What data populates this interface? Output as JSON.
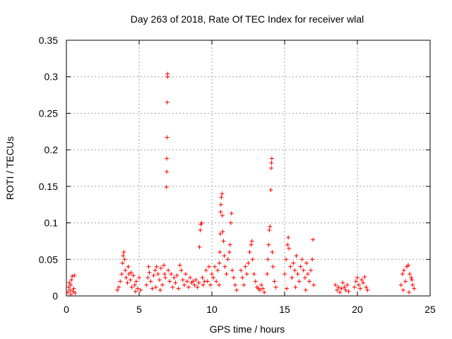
{
  "chart_data": {
    "type": "scatter",
    "title": "Day 263 of 2018, Rate Of TEC Index for receiver wlal",
    "xlabel": "GPS time / hours",
    "ylabel": "ROTI / TECUs",
    "xlim": [
      0,
      25
    ],
    "ylim": [
      0,
      0.35
    ],
    "x_ticks": [
      "0",
      "5",
      "10",
      "15",
      "20",
      "25"
    ],
    "y_ticks": [
      "0",
      "0.05",
      "0.1",
      "0.15",
      "0.2",
      "0.25",
      "0.3",
      "0.35"
    ],
    "grid": true,
    "marker": "+",
    "color": "#ff0000",
    "series": [
      {
        "name": "ROTI",
        "points": [
          [
            0.1,
            0.005
          ],
          [
            0.15,
            0.012
          ],
          [
            0.2,
            0.018
          ],
          [
            0.25,
            0.008
          ],
          [
            0.3,
            0.015
          ],
          [
            0.35,
            0.022
          ],
          [
            0.4,
            0.027
          ],
          [
            0.45,
            0.006
          ],
          [
            0.5,
            0.01
          ],
          [
            0.55,
            0.028
          ],
          [
            0.6,
            0.004
          ],
          [
            0.3,
            0.002
          ],
          [
            3.5,
            0.008
          ],
          [
            3.6,
            0.012
          ],
          [
            3.7,
            0.02
          ],
          [
            3.8,
            0.03
          ],
          [
            3.85,
            0.045
          ],
          [
            3.9,
            0.055
          ],
          [
            3.95,
            0.06
          ],
          [
            4.0,
            0.05
          ],
          [
            4.05,
            0.035
          ],
          [
            4.1,
            0.025
          ],
          [
            4.2,
            0.018
          ],
          [
            4.3,
            0.03
          ],
          [
            4.4,
            0.022
          ],
          [
            4.5,
            0.012
          ],
          [
            4.6,
            0.028
          ],
          [
            4.7,
            0.015
          ],
          [
            4.8,
            0.02
          ],
          [
            4.9,
            0.01
          ],
          [
            5.0,
            0.025
          ],
          [
            5.1,
            0.008
          ],
          [
            4.25,
            0.04
          ],
          [
            4.45,
            0.032
          ],
          [
            4.75,
            0.006
          ],
          [
            5.5,
            0.015
          ],
          [
            5.6,
            0.025
          ],
          [
            5.7,
            0.032
          ],
          [
            5.8,
            0.02
          ],
          [
            5.9,
            0.01
          ],
          [
            6.0,
            0.028
          ],
          [
            6.1,
            0.035
          ],
          [
            6.2,
            0.04
          ],
          [
            6.3,
            0.03
          ],
          [
            6.4,
            0.022
          ],
          [
            6.5,
            0.038
          ],
          [
            6.6,
            0.015
          ],
          [
            6.7,
            0.042
          ],
          [
            6.8,
            0.025
          ],
          [
            5.65,
            0.04
          ],
          [
            6.15,
            0.012
          ],
          [
            6.45,
            0.008
          ],
          [
            6.75,
            0.03
          ],
          [
            6.88,
            0.149
          ],
          [
            6.9,
            0.17
          ],
          [
            6.9,
            0.188
          ],
          [
            6.92,
            0.217
          ],
          [
            6.93,
            0.265
          ],
          [
            6.95,
            0.3
          ],
          [
            6.95,
            0.304
          ],
          [
            7.0,
            0.035
          ],
          [
            7.1,
            0.02
          ],
          [
            7.2,
            0.03
          ],
          [
            7.3,
            0.012
          ],
          [
            7.4,
            0.025
          ],
          [
            7.5,
            0.018
          ],
          [
            7.6,
            0.028
          ],
          [
            7.7,
            0.01
          ],
          [
            7.8,
            0.042
          ],
          [
            7.9,
            0.035
          ],
          [
            8.0,
            0.022
          ],
          [
            8.1,
            0.015
          ],
          [
            8.2,
            0.03
          ],
          [
            8.3,
            0.02
          ],
          [
            8.4,
            0.012
          ],
          [
            8.5,
            0.025
          ],
          [
            8.6,
            0.018
          ],
          [
            8.7,
            0.02
          ],
          [
            8.8,
            0.015
          ],
          [
            8.9,
            0.022
          ],
          [
            9.0,
            0.012
          ],
          [
            9.1,
            0.018
          ],
          [
            9.15,
            0.067
          ],
          [
            9.2,
            0.09
          ],
          [
            9.25,
            0.098
          ],
          [
            9.3,
            0.1
          ],
          [
            9.35,
            0.025
          ],
          [
            9.4,
            0.015
          ],
          [
            9.5,
            0.02
          ],
          [
            9.6,
            0.035
          ],
          [
            9.7,
            0.02
          ],
          [
            9.8,
            0.04
          ],
          [
            9.9,
            0.015
          ],
          [
            10.0,
            0.03
          ],
          [
            10.1,
            0.025
          ],
          [
            10.2,
            0.04
          ],
          [
            10.3,
            0.02
          ],
          [
            10.4,
            0.035
          ],
          [
            10.5,
            0.015
          ],
          [
            10.52,
            0.045
          ],
          [
            10.55,
            0.06
          ],
          [
            10.58,
            0.085
          ],
          [
            10.6,
            0.115
          ],
          [
            10.62,
            0.125
          ],
          [
            10.65,
            0.135
          ],
          [
            10.7,
            0.14
          ],
          [
            10.72,
            0.11
          ],
          [
            10.75,
            0.088
          ],
          [
            10.8,
            0.075
          ],
          [
            10.85,
            0.055
          ],
          [
            10.9,
            0.04
          ],
          [
            11.0,
            0.03
          ],
          [
            11.1,
            0.05
          ],
          [
            11.2,
            0.06
          ],
          [
            11.25,
            0.07
          ],
          [
            11.3,
            0.1
          ],
          [
            11.35,
            0.113
          ],
          [
            11.4,
            0.035
          ],
          [
            11.5,
            0.025
          ],
          [
            11.6,
            0.015
          ],
          [
            11.7,
            0.008
          ],
          [
            12.0,
            0.035
          ],
          [
            12.1,
            0.025
          ],
          [
            12.2,
            0.015
          ],
          [
            12.3,
            0.04
          ],
          [
            12.4,
            0.03
          ],
          [
            12.5,
            0.045
          ],
          [
            12.6,
            0.06
          ],
          [
            12.7,
            0.07
          ],
          [
            12.75,
            0.075
          ],
          [
            12.8,
            0.05
          ],
          [
            12.9,
            0.03
          ],
          [
            13.0,
            0.02
          ],
          [
            13.1,
            0.012
          ],
          [
            13.2,
            0.01
          ],
          [
            13.3,
            0.008
          ],
          [
            13.4,
            0.015
          ],
          [
            13.5,
            0.01
          ],
          [
            13.6,
            0.005
          ],
          [
            13.8,
            0.03
          ],
          [
            13.85,
            0.05
          ],
          [
            13.9,
            0.07
          ],
          [
            13.95,
            0.09
          ],
          [
            14.0,
            0.095
          ],
          [
            14.05,
            0.145
          ],
          [
            14.08,
            0.175
          ],
          [
            14.1,
            0.182
          ],
          [
            14.12,
            0.188
          ],
          [
            14.15,
            0.06
          ],
          [
            14.2,
            0.04
          ],
          [
            14.3,
            0.02
          ],
          [
            14.4,
            0.012
          ],
          [
            15.0,
            0.03
          ],
          [
            15.1,
            0.05
          ],
          [
            15.2,
            0.07
          ],
          [
            15.25,
            0.08
          ],
          [
            15.3,
            0.065
          ],
          [
            15.4,
            0.04
          ],
          [
            15.5,
            0.025
          ],
          [
            15.6,
            0.045
          ],
          [
            15.7,
            0.035
          ],
          [
            15.8,
            0.055
          ],
          [
            15.9,
            0.03
          ],
          [
            16.0,
            0.02
          ],
          [
            16.1,
            0.04
          ],
          [
            16.2,
            0.05
          ],
          [
            16.3,
            0.035
          ],
          [
            16.4,
            0.025
          ],
          [
            16.5,
            0.045
          ],
          [
            16.6,
            0.03
          ],
          [
            16.7,
            0.02
          ],
          [
            16.8,
            0.035
          ],
          [
            16.9,
            0.05
          ],
          [
            16.95,
            0.077
          ],
          [
            17.0,
            0.015
          ],
          [
            15.15,
            0.01
          ],
          [
            15.75,
            0.012
          ],
          [
            16.45,
            0.008
          ],
          [
            18.5,
            0.015
          ],
          [
            18.6,
            0.008
          ],
          [
            18.7,
            0.012
          ],
          [
            18.8,
            0.005
          ],
          [
            18.9,
            0.01
          ],
          [
            19.0,
            0.018
          ],
          [
            19.1,
            0.012
          ],
          [
            19.2,
            0.008
          ],
          [
            19.3,
            0.015
          ],
          [
            19.4,
            0.006
          ],
          [
            19.8,
            0.012
          ],
          [
            19.9,
            0.02
          ],
          [
            20.0,
            0.025
          ],
          [
            20.1,
            0.015
          ],
          [
            20.2,
            0.01
          ],
          [
            20.3,
            0.022
          ],
          [
            20.4,
            0.018
          ],
          [
            20.5,
            0.026
          ],
          [
            20.6,
            0.012
          ],
          [
            20.7,
            0.008
          ],
          [
            23.0,
            0.015
          ],
          [
            23.1,
            0.03
          ],
          [
            23.2,
            0.035
          ],
          [
            23.3,
            0.02
          ],
          [
            23.4,
            0.04
          ],
          [
            23.5,
            0.042
          ],
          [
            23.6,
            0.03
          ],
          [
            23.7,
            0.025
          ],
          [
            23.8,
            0.015
          ],
          [
            23.9,
            0.01
          ],
          [
            23.15,
            0.008
          ],
          [
            23.55,
            0.005
          ],
          [
            23.75,
            0.022
          ]
        ]
      }
    ]
  }
}
